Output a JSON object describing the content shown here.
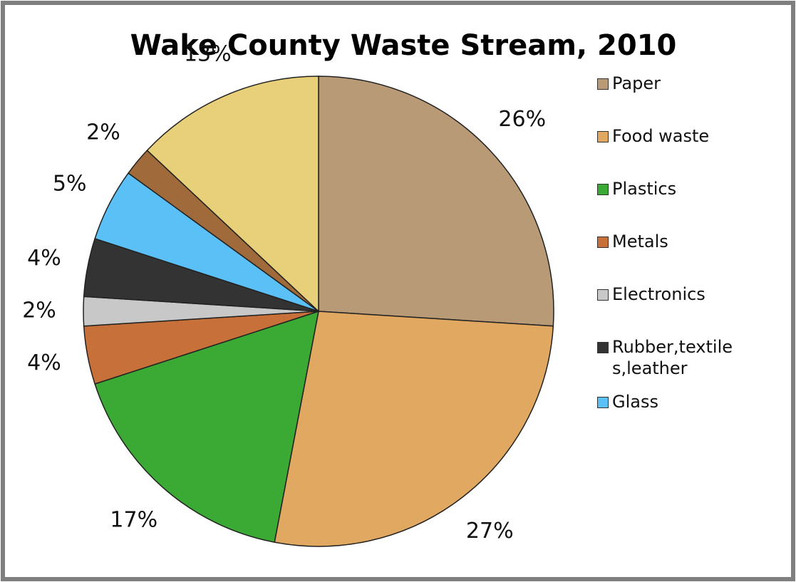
{
  "chart_data": {
    "type": "pie",
    "title": "Wake County Waste Stream, 2010",
    "categories": [
      "Paper",
      "Food waste",
      "Plastics",
      "Metals",
      "Electronics",
      "Rubber,textiles,leather",
      "Glass",
      null,
      null
    ],
    "values": [
      26,
      27,
      17,
      4,
      2,
      4,
      5,
      2,
      13
    ],
    "value_labels": [
      "26%",
      "27%",
      "17%",
      "4%",
      "2%",
      "4%",
      "5%",
      "2%",
      "13%"
    ],
    "colors": [
      "#b89a76",
      "#e0a860",
      "#3aaa35",
      "#c8703a",
      "#c8c8c8",
      "#333333",
      "#5bc0f5",
      "#a06a3a",
      "#e8cf7a"
    ],
    "legend": "right"
  }
}
